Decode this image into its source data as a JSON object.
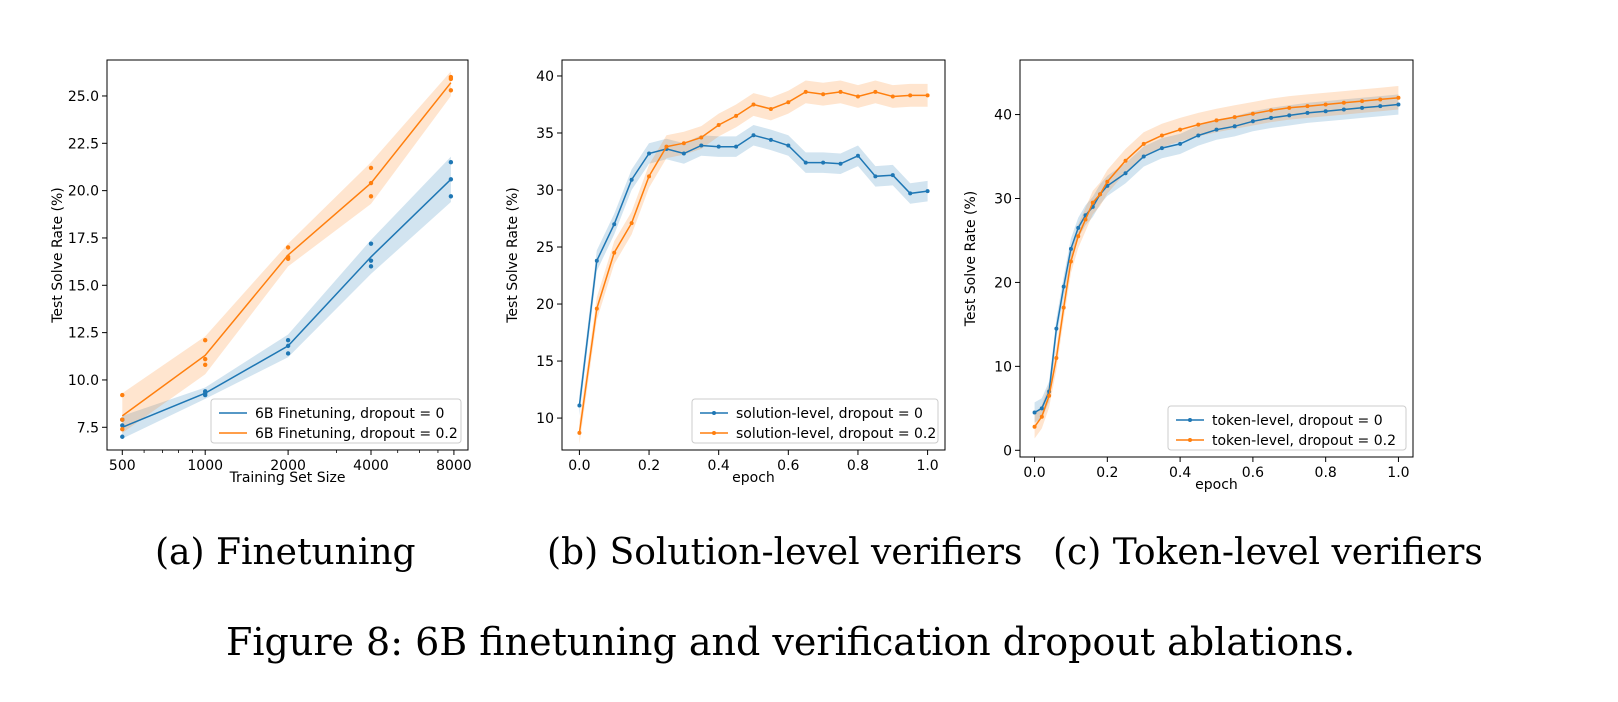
{
  "figure": {
    "caption": "Figure 8: 6B finetuning and verification dropout ablations.",
    "subcaptions": [
      "(a) Finetuning",
      "(b) Solution-level verifiers",
      "(c) Token-level verifiers"
    ]
  },
  "colors": {
    "blue": "#1f77b4",
    "orange": "#ff7f0e"
  },
  "chart_data": [
    {
      "type": "line",
      "xlabel": "Training Set Size",
      "ylabel": "Test Solve Rate (%)",
      "xscale": "log2",
      "xlim": [
        440,
        9000
      ],
      "ylim": [
        6.3,
        26.9
      ],
      "xticks": [
        500,
        1000,
        2000,
        4000,
        8000
      ],
      "xticklabels": [
        "500",
        "1000",
        "2000",
        "4000",
        "8000"
      ],
      "yticks": [
        7.5,
        10.0,
        12.5,
        15.0,
        17.5,
        20.0,
        22.5,
        25.0
      ],
      "yticklabels": [
        "7.5",
        "10.0",
        "12.5",
        "15.0",
        "17.5",
        "20.0",
        "22.5",
        "25.0"
      ],
      "legend_position": "lower-right",
      "markers": false,
      "x": [
        500,
        1000,
        2000,
        4000,
        7800
      ],
      "series": [
        {
          "name": "6B Finetuning, dropout = 0",
          "color": "#1f77b4",
          "values": [
            7.5,
            9.3,
            11.8,
            16.5,
            20.6
          ],
          "band_low": [
            6.9,
            9.0,
            11.2,
            15.6,
            19.4
          ],
          "band_high": [
            8.1,
            9.6,
            12.4,
            17.4,
            21.8
          ],
          "points": [
            [
              7.0,
              7.6,
              7.9
            ],
            [
              9.2,
              9.3,
              9.4
            ],
            [
              11.4,
              11.8,
              12.1
            ],
            [
              16.0,
              16.3,
              17.2
            ],
            [
              19.7,
              20.6,
              21.5
            ]
          ]
        },
        {
          "name": "6B Finetuning, dropout = 0.2",
          "color": "#ff7f0e",
          "values": [
            8.1,
            11.3,
            16.6,
            20.4,
            25.7
          ],
          "band_low": [
            7.2,
            10.3,
            16.0,
            19.3,
            25.0
          ],
          "band_high": [
            9.3,
            12.3,
            17.2,
            21.5,
            26.3
          ],
          "points": [
            [
              7.4,
              7.9,
              9.2
            ],
            [
              10.8,
              11.1,
              12.1
            ],
            [
              16.4,
              16.5,
              17.0
            ],
            [
              19.7,
              20.4,
              21.2
            ],
            [
              25.3,
              25.9,
              26.0
            ]
          ]
        }
      ]
    },
    {
      "type": "line",
      "xlabel": "epoch",
      "ylabel": "Test Solve Rate (%)",
      "xlim": [
        -0.05,
        1.05
      ],
      "ylim": [
        7.2,
        41.4
      ],
      "xticks": [
        0.0,
        0.2,
        0.4,
        0.6,
        0.8,
        1.0
      ],
      "xticklabels": [
        "0.0",
        "0.2",
        "0.4",
        "0.6",
        "0.8",
        "1.0"
      ],
      "yticks": [
        10,
        15,
        20,
        25,
        30,
        35,
        40
      ],
      "yticklabels": [
        "10",
        "15",
        "20",
        "25",
        "30",
        "35",
        "40"
      ],
      "legend_position": "lower-right",
      "markers": true,
      "x": [
        0.0,
        0.05,
        0.1,
        0.15,
        0.2,
        0.25,
        0.3,
        0.35,
        0.4,
        0.45,
        0.5,
        0.55,
        0.6,
        0.65,
        0.7,
        0.75,
        0.8,
        0.85,
        0.9,
        0.95,
        1.0
      ],
      "series": [
        {
          "name": "solution-level, dropout = 0",
          "color": "#1f77b4",
          "values": [
            11.1,
            23.8,
            27.0,
            30.9,
            33.2,
            33.6,
            33.2,
            33.9,
            33.8,
            33.8,
            34.8,
            34.4,
            33.9,
            32.4,
            32.4,
            32.3,
            33.0,
            31.2,
            31.3,
            29.7,
            29.9
          ],
          "band": 0.9
        },
        {
          "name": "solution-level, dropout = 0.2",
          "color": "#ff7f0e",
          "values": [
            8.7,
            19.6,
            24.5,
            27.1,
            31.2,
            33.8,
            34.1,
            34.6,
            35.7,
            36.5,
            37.5,
            37.1,
            37.7,
            38.6,
            38.4,
            38.6,
            38.2,
            38.6,
            38.2,
            38.3,
            38.3
          ],
          "band": 1.0
        }
      ]
    },
    {
      "type": "line",
      "xlabel": "epoch",
      "ylabel": "Test Solve Rate (%)",
      "xlim": [
        -0.04,
        1.04
      ],
      "ylim": [
        -0.8,
        46.5
      ],
      "xticks": [
        0.0,
        0.2,
        0.4,
        0.6,
        0.8,
        1.0
      ],
      "xticklabels": [
        "0.0",
        "0.2",
        "0.4",
        "0.6",
        "0.8",
        "1.0"
      ],
      "yticks": [
        0,
        10,
        20,
        30,
        40
      ],
      "yticklabels": [
        "0",
        "10",
        "20",
        "30",
        "40"
      ],
      "legend_position": "lower-right",
      "markers": true,
      "x": [
        0.0,
        0.02,
        0.04,
        0.06,
        0.08,
        0.1,
        0.12,
        0.14,
        0.16,
        0.18,
        0.2,
        0.25,
        0.3,
        0.35,
        0.4,
        0.45,
        0.5,
        0.55,
        0.6,
        0.65,
        0.7,
        0.75,
        0.8,
        0.85,
        0.9,
        0.95,
        1.0
      ],
      "series": [
        {
          "name": "token-level, dropout = 0",
          "color": "#1f77b4",
          "values": [
            4.5,
            5.0,
            7.0,
            14.5,
            19.5,
            24.0,
            26.5,
            28.0,
            29.0,
            30.5,
            31.5,
            33.0,
            35.0,
            36.0,
            36.5,
            37.5,
            38.2,
            38.6,
            39.2,
            39.6,
            39.9,
            40.2,
            40.4,
            40.6,
            40.8,
            41.0,
            41.2
          ],
          "band": 1.2
        },
        {
          "name": "token-level, dropout = 0.2",
          "color": "#ff7f0e",
          "values": [
            2.8,
            4.0,
            6.5,
            11.0,
            17.0,
            22.5,
            25.5,
            27.5,
            29.5,
            30.5,
            32.0,
            34.5,
            36.5,
            37.5,
            38.2,
            38.8,
            39.3,
            39.7,
            40.1,
            40.5,
            40.8,
            41.0,
            41.2,
            41.4,
            41.6,
            41.8,
            42.0
          ],
          "band": 1.4
        }
      ]
    }
  ]
}
